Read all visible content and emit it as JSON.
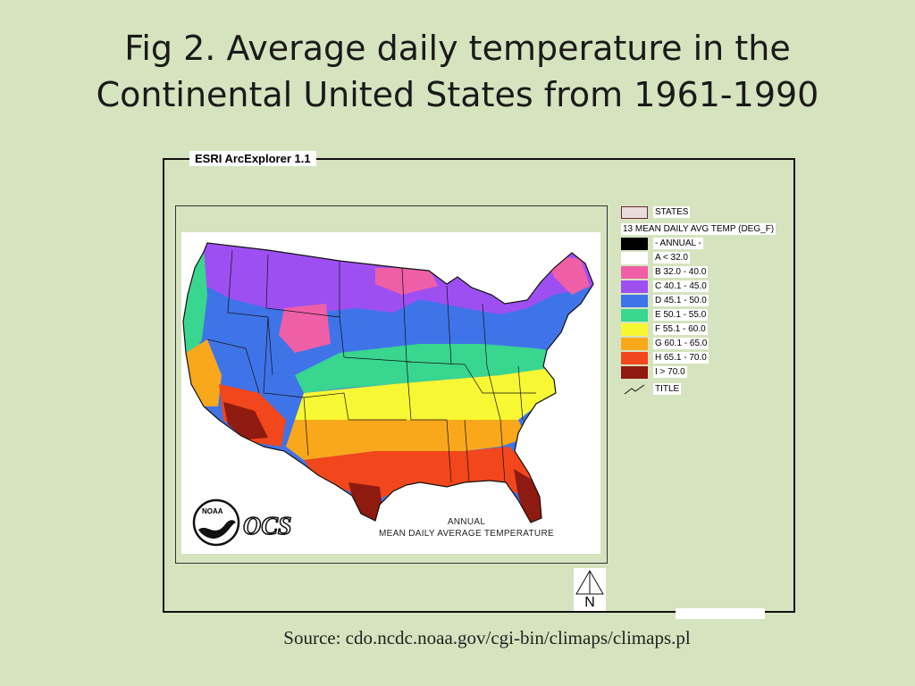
{
  "slide": {
    "title": "Fig 2. Average daily temperature in the Continental United States from 1961-1990",
    "source": "Source: cdo.ncdc.noaa.gov/cgi-bin/climaps/climaps.pl"
  },
  "app": {
    "frame_label": "ESRI ArcExplorer 1.1"
  },
  "map": {
    "caption_line1": "ANNUAL",
    "caption_line2": "MEAN DAILY AVERAGE TEMPERATURE",
    "logo_noaa": "NOAA",
    "logo_ocs": "OCS",
    "north_label": "N"
  },
  "legend": {
    "states_label": "STATES",
    "layer_title": "13 MEAN DAILY AVG TEMP (DEG_F)",
    "annual_label": "- ANNUAL -",
    "classes": [
      {
        "label": "A < 32.0",
        "color": "#ffffff"
      },
      {
        "label": "B 32.0 - 40.0",
        "color": "#ef5fa7"
      },
      {
        "label": "C 40.1 - 45.0",
        "color": "#9e4ff2"
      },
      {
        "label": "D 45.1 - 50.0",
        "color": "#3f74e8"
      },
      {
        "label": "E 50.1 - 55.0",
        "color": "#39d68f"
      },
      {
        "label": "F 55.1 - 60.0",
        "color": "#f7f733"
      },
      {
        "label": "G 60.1 - 65.0",
        "color": "#f9a81c"
      },
      {
        "label": "H 65.1 - 70.0",
        "color": "#f2461c"
      },
      {
        "label": "I > 70.0",
        "color": "#8e1a10"
      }
    ],
    "title_label": "TITLE"
  }
}
